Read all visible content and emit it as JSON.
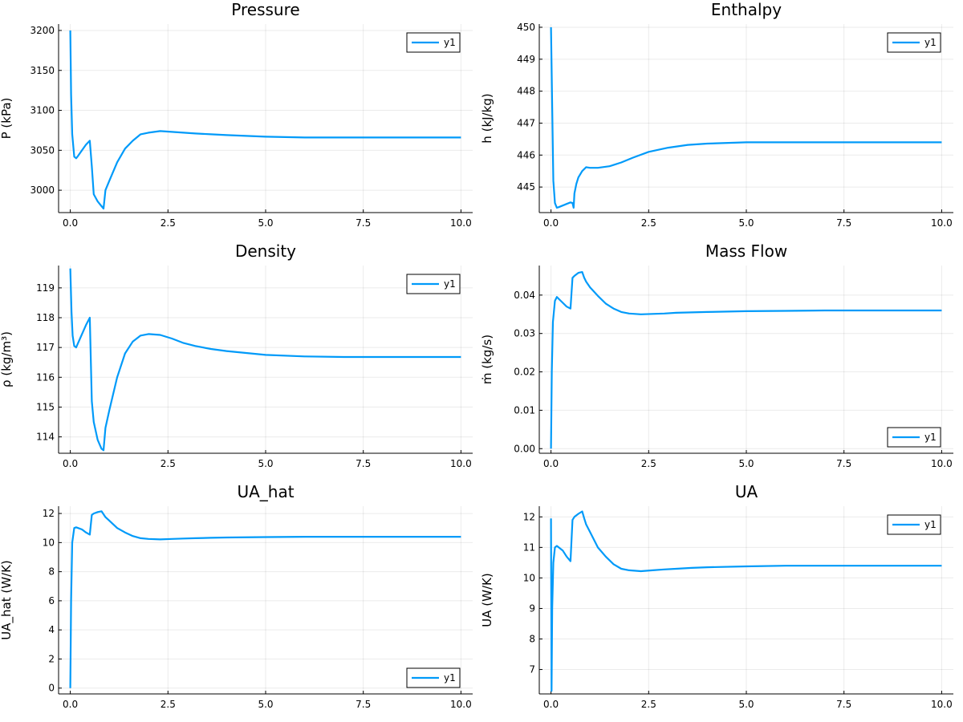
{
  "chart_data": [
    {
      "type": "line",
      "title": "Pressure",
      "xlabel": "",
      "ylabel": "P (kPa)",
      "xlim": [
        -0.3,
        10.3
      ],
      "ylim": [
        2972,
        3208
      ],
      "xticks": [
        0,
        2.5,
        5,
        7.5,
        10
      ],
      "xtick_labels": [
        "0.0",
        "2.5",
        "5.0",
        "7.5",
        "10.0"
      ],
      "yticks": [
        3000,
        3050,
        3100,
        3150,
        3200
      ],
      "ytick_labels": [
        "3000",
        "3050",
        "3100",
        "3150",
        "3200"
      ],
      "grid": true,
      "legend": "top-right",
      "series": [
        {
          "name": "y1",
          "color": "#009af9",
          "x": [
            0,
            0.02,
            0.05,
            0.1,
            0.15,
            0.2,
            0.3,
            0.4,
            0.5,
            0.55,
            0.6,
            0.7,
            0.8,
            0.85,
            0.9,
            1.0,
            1.2,
            1.4,
            1.6,
            1.8,
            2.0,
            2.3,
            2.6,
            2.9,
            3.2,
            3.6,
            4.0,
            5.0,
            6.0,
            7.0,
            8.0,
            9.0,
            10.0
          ],
          "y": [
            3200,
            3120,
            3070,
            3042,
            3040,
            3043,
            3050,
            3057,
            3062,
            3030,
            2995,
            2986,
            2980,
            2977,
            3000,
            3012,
            3035,
            3052,
            3062,
            3070,
            3072,
            3074,
            3073,
            3072,
            3071,
            3070,
            3069,
            3067,
            3066,
            3066,
            3066,
            3066,
            3066
          ]
        }
      ]
    },
    {
      "type": "line",
      "title": "Enthalpy",
      "xlabel": "",
      "ylabel": "h (kJ/kg)",
      "xlim": [
        -0.3,
        10.3
      ],
      "ylim": [
        444.2,
        450.1
      ],
      "xticks": [
        0,
        2.5,
        5,
        7.5,
        10
      ],
      "xtick_labels": [
        "0.0",
        "2.5",
        "5.0",
        "7.5",
        "10.0"
      ],
      "yticks": [
        445,
        446,
        447,
        448,
        449,
        450
      ],
      "ytick_labels": [
        "445",
        "446",
        "447",
        "448",
        "449",
        "450"
      ],
      "grid": true,
      "legend": "top-right",
      "series": [
        {
          "name": "y1",
          "color": "#009af9",
          "x": [
            0,
            0.03,
            0.06,
            0.1,
            0.15,
            0.2,
            0.3,
            0.4,
            0.5,
            0.55,
            0.58,
            0.6,
            0.65,
            0.7,
            0.8,
            0.9,
            1.0,
            1.2,
            1.5,
            1.8,
            2.1,
            2.5,
            3.0,
            3.5,
            4.0,
            5.0,
            6.0,
            7.0,
            8.0,
            9.0,
            10.0
          ],
          "y": [
            450,
            447.5,
            445.2,
            444.5,
            444.35,
            444.37,
            444.42,
            444.47,
            444.52,
            444.5,
            444.35,
            444.8,
            445.1,
            445.3,
            445.5,
            445.62,
            445.6,
            445.6,
            445.65,
            445.77,
            445.92,
            446.1,
            446.23,
            446.32,
            446.36,
            446.4,
            446.4,
            446.4,
            446.4,
            446.4,
            446.4
          ]
        }
      ]
    },
    {
      "type": "line",
      "title": "Density",
      "xlabel": "",
      "ylabel": "ρ (kg/m³)",
      "xlim": [
        -0.3,
        10.3
      ],
      "ylim": [
        113.45,
        119.75
      ],
      "xticks": [
        0,
        2.5,
        5,
        7.5,
        10
      ],
      "xtick_labels": [
        "0.0",
        "2.5",
        "5.0",
        "7.5",
        "10.0"
      ],
      "yticks": [
        114,
        115,
        116,
        117,
        118,
        119
      ],
      "ytick_labels": [
        "114",
        "115",
        "116",
        "117",
        "118",
        "119"
      ],
      "grid": true,
      "legend": "top-right",
      "series": [
        {
          "name": "y1",
          "color": "#009af9",
          "x": [
            0,
            0.03,
            0.06,
            0.1,
            0.15,
            0.2,
            0.3,
            0.4,
            0.5,
            0.55,
            0.6,
            0.7,
            0.8,
            0.85,
            0.9,
            1.0,
            1.2,
            1.4,
            1.6,
            1.8,
            2.0,
            2.3,
            2.6,
            2.9,
            3.2,
            3.6,
            4.0,
            5.0,
            6.0,
            7.0,
            8.0,
            9.0,
            10.0
          ],
          "y": [
            119.65,
            118.2,
            117.4,
            117.05,
            117.0,
            117.15,
            117.45,
            117.75,
            118.0,
            115.2,
            114.5,
            113.9,
            113.6,
            113.55,
            114.3,
            114.9,
            116.0,
            116.8,
            117.2,
            117.4,
            117.45,
            117.42,
            117.3,
            117.15,
            117.05,
            116.95,
            116.88,
            116.75,
            116.7,
            116.68,
            116.68,
            116.68,
            116.68
          ]
        }
      ]
    },
    {
      "type": "line",
      "title": "Mass Flow",
      "xlabel": "",
      "ylabel": "ṁ (kg/s)",
      "xlim": [
        -0.3,
        10.3
      ],
      "ylim": [
        -0.0012,
        0.0477
      ],
      "xticks": [
        0,
        2.5,
        5,
        7.5,
        10
      ],
      "xtick_labels": [
        "0.0",
        "2.5",
        "5.0",
        "7.5",
        "10.0"
      ],
      "yticks": [
        0,
        0.01,
        0.02,
        0.03,
        0.04
      ],
      "ytick_labels": [
        "0.00",
        "0.01",
        "0.02",
        "0.03",
        "0.04"
      ],
      "grid": true,
      "legend": "bottom-right",
      "series": [
        {
          "name": "y1",
          "color": "#009af9",
          "x": [
            0,
            0.02,
            0.05,
            0.1,
            0.15,
            0.2,
            0.3,
            0.4,
            0.5,
            0.55,
            0.6,
            0.7,
            0.8,
            0.85,
            0.9,
            1.0,
            1.2,
            1.4,
            1.6,
            1.8,
            2.0,
            2.3,
            2.6,
            2.9,
            3.2,
            3.6,
            4.0,
            5.0,
            6.0,
            7.0,
            8.0,
            9.0,
            10.0
          ],
          "y": [
            0.0,
            0.02,
            0.033,
            0.0385,
            0.0395,
            0.039,
            0.038,
            0.037,
            0.0365,
            0.0445,
            0.045,
            0.0458,
            0.046,
            0.0445,
            0.0435,
            0.042,
            0.0398,
            0.0378,
            0.0365,
            0.0356,
            0.0352,
            0.035,
            0.0351,
            0.0352,
            0.0354,
            0.0355,
            0.0356,
            0.0358,
            0.0359,
            0.036,
            0.036,
            0.036,
            0.036
          ]
        }
      ]
    },
    {
      "type": "line",
      "title": "UA_hat",
      "xlabel": "",
      "ylabel": "UA_hat (W/K)",
      "xlim": [
        -0.3,
        10.3
      ],
      "ylim": [
        -0.4,
        12.5
      ],
      "xticks": [
        0,
        2.5,
        5,
        7.5,
        10
      ],
      "xtick_labels": [
        "0.0",
        "2.5",
        "5.0",
        "7.5",
        "10.0"
      ],
      "yticks": [
        0,
        2,
        4,
        6,
        8,
        10,
        12
      ],
      "ytick_labels": [
        "0",
        "2",
        "4",
        "6",
        "8",
        "10",
        "12"
      ],
      "grid": true,
      "legend": "bottom-right",
      "series": [
        {
          "name": "y1",
          "color": "#009af9",
          "x": [
            0,
            0.02,
            0.05,
            0.1,
            0.15,
            0.2,
            0.3,
            0.4,
            0.5,
            0.55,
            0.6,
            0.7,
            0.8,
            0.85,
            0.9,
            1.0,
            1.2,
            1.4,
            1.6,
            1.8,
            2.0,
            2.3,
            2.6,
            2.9,
            3.2,
            3.6,
            4.0,
            5.0,
            6.0,
            7.0,
            8.0,
            9.0,
            10.0
          ],
          "y": [
            0,
            6,
            10,
            11.0,
            11.05,
            11.0,
            10.9,
            10.7,
            10.55,
            11.9,
            12.0,
            12.1,
            12.15,
            11.95,
            11.75,
            11.5,
            11.0,
            10.7,
            10.45,
            10.3,
            10.25,
            10.22,
            10.25,
            10.28,
            10.3,
            10.33,
            10.35,
            10.38,
            10.4,
            10.4,
            10.4,
            10.4,
            10.4
          ]
        }
      ]
    },
    {
      "type": "line",
      "title": "UA",
      "xlabel": "",
      "ylabel": "UA (W/K)",
      "xlim": [
        -0.3,
        10.3
      ],
      "ylim": [
        6.2,
        12.35
      ],
      "xticks": [
        0,
        2.5,
        5,
        7.5,
        10
      ],
      "xtick_labels": [
        "0.0",
        "2.5",
        "5.0",
        "7.5",
        "10.0"
      ],
      "yticks": [
        7,
        8,
        9,
        10,
        11,
        12
      ],
      "ytick_labels": [
        "7",
        "8",
        "9",
        "10",
        "11",
        "12"
      ],
      "grid": true,
      "legend": "top-right",
      "series": [
        {
          "name": "y1",
          "color": "#009af9",
          "x": [
            0,
            0.015,
            0.03,
            0.06,
            0.1,
            0.15,
            0.2,
            0.3,
            0.4,
            0.5,
            0.55,
            0.6,
            0.7,
            0.8,
            0.85,
            0.9,
            1.0,
            1.2,
            1.4,
            1.6,
            1.8,
            2.0,
            2.3,
            2.6,
            2.9,
            3.2,
            3.6,
            4.0,
            5.0,
            6.0,
            7.0,
            8.0,
            9.0,
            10.0
          ],
          "y": [
            11.95,
            6.3,
            9.0,
            10.5,
            11.0,
            11.05,
            11.0,
            10.9,
            10.7,
            10.55,
            11.9,
            12.0,
            12.1,
            12.18,
            11.95,
            11.75,
            11.5,
            11.0,
            10.7,
            10.45,
            10.3,
            10.25,
            10.22,
            10.25,
            10.28,
            10.3,
            10.33,
            10.35,
            10.38,
            10.4,
            10.4,
            10.4,
            10.4,
            10.4
          ]
        }
      ]
    }
  ]
}
